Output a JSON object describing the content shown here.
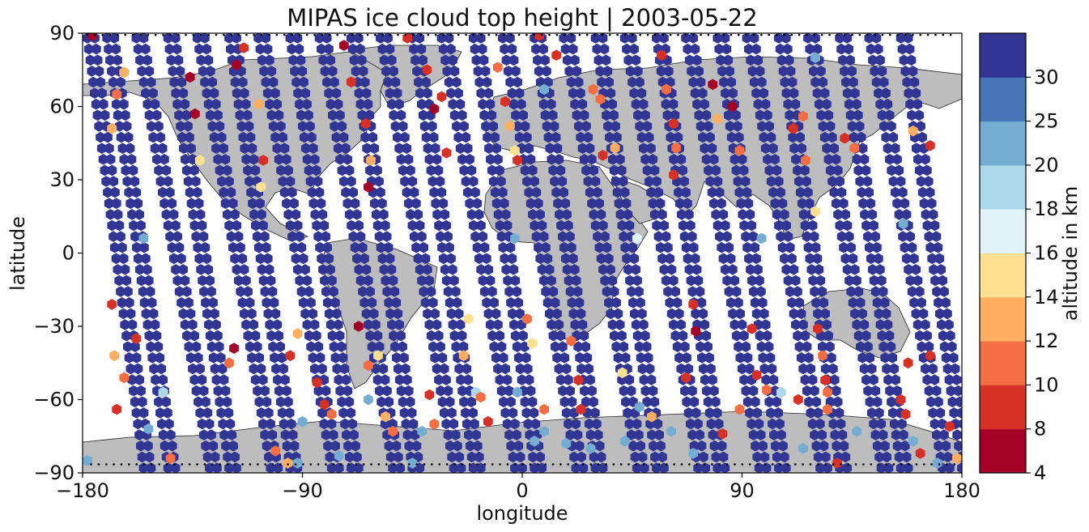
{
  "chart_data": {
    "type": "scatter",
    "title": "MIPAS ice cloud top height | 2003-05-22",
    "xlabel": "longitude",
    "ylabel": "latitude",
    "xlim": [
      -180,
      180
    ],
    "ylim": [
      -90,
      90
    ],
    "xticks": [
      -180,
      -90,
      0,
      90,
      180
    ],
    "yticks": [
      -90,
      -60,
      -30,
      0,
      30,
      60,
      90
    ],
    "xtick_labels": [
      "−180",
      "−90",
      "0",
      "90",
      "180"
    ],
    "ytick_labels": [
      "−90",
      "−60",
      "−30",
      "0",
      "30",
      "60",
      "90"
    ],
    "colorbar": {
      "label": "altitude in km",
      "bounds": [
        4,
        8,
        10,
        12,
        14,
        16,
        18,
        20,
        25,
        30
      ],
      "tick_labels": [
        "4",
        "8",
        "10",
        "12",
        "14",
        "16",
        "18",
        "20",
        "25",
        "30"
      ],
      "colors": [
        "#a50026",
        "#d73027",
        "#f46d43",
        "#fdae61",
        "#fee090",
        "#e0f3f8",
        "#abd9e9",
        "#74add1",
        "#4575b4",
        "#313695"
      ]
    },
    "marker": "hexagon",
    "point_spacing_deg": 4.6,
    "orbit_tracks": [
      {
        "ascending": false,
        "x_start": -178,
        "x_end": -155
      },
      {
        "ascending": true,
        "x_start": -145,
        "x_end": -170
      },
      {
        "ascending": false,
        "x_start": -158,
        "x_end": -128
      },
      {
        "ascending": true,
        "x_start": -120,
        "x_end": -145
      },
      {
        "ascending": false,
        "x_start": -133,
        "x_end": -103
      },
      {
        "ascending": true,
        "x_start": -95,
        "x_end": -120
      },
      {
        "ascending": false,
        "x_start": -108,
        "x_end": -78
      },
      {
        "ascending": true,
        "x_start": -70,
        "x_end": -95
      },
      {
        "ascending": false,
        "x_start": -83,
        "x_end": -53
      },
      {
        "ascending": true,
        "x_start": -45,
        "x_end": -70
      },
      {
        "ascending": false,
        "x_start": -58,
        "x_end": -28
      },
      {
        "ascending": true,
        "x_start": -20,
        "x_end": -45
      },
      {
        "ascending": false,
        "x_start": -33,
        "x_end": -3
      },
      {
        "ascending": true,
        "x_start": 5,
        "x_end": -20
      },
      {
        "ascending": false,
        "x_start": -8,
        "x_end": 22
      },
      {
        "ascending": true,
        "x_start": 30,
        "x_end": 5
      },
      {
        "ascending": false,
        "x_start": 17,
        "x_end": 47
      },
      {
        "ascending": true,
        "x_start": 55,
        "x_end": 30
      },
      {
        "ascending": false,
        "x_start": 42,
        "x_end": 72
      },
      {
        "ascending": true,
        "x_start": 80,
        "x_end": 55
      },
      {
        "ascending": false,
        "x_start": 67,
        "x_end": 97
      },
      {
        "ascending": true,
        "x_start": 105,
        "x_end": 80
      },
      {
        "ascending": false,
        "x_start": 92,
        "x_end": 122
      },
      {
        "ascending": true,
        "x_start": 130,
        "x_end": 105
      },
      {
        "ascending": false,
        "x_start": 117,
        "x_end": 147
      },
      {
        "ascending": true,
        "x_start": 155,
        "x_end": 130
      },
      {
        "ascending": false,
        "x_start": 142,
        "x_end": 172
      },
      {
        "ascending": true,
        "x_start": 180,
        "x_end": 155
      }
    ],
    "low_clouds": [
      {
        "x": -176,
        "y": 89,
        "alt": 6
      },
      {
        "x": -166,
        "y": 65,
        "alt": 11
      },
      {
        "x": -168,
        "y": 51,
        "alt": 12
      },
      {
        "x": -163,
        "y": 74,
        "alt": 13
      },
      {
        "x": -168,
        "y": -21,
        "alt": 9
      },
      {
        "x": -167,
        "y": -42,
        "alt": 12
      },
      {
        "x": -163,
        "y": -51,
        "alt": 11
      },
      {
        "x": -166,
        "y": -64,
        "alt": 8
      },
      {
        "x": -158,
        "y": -35,
        "alt": 8
      },
      {
        "x": -136,
        "y": 72,
        "alt": 6
      },
      {
        "x": -134,
        "y": 57,
        "alt": 7
      },
      {
        "x": -132,
        "y": 38,
        "alt": 15
      },
      {
        "x": -147,
        "y": -57,
        "alt": 19
      },
      {
        "x": -144,
        "y": -84,
        "alt": 11
      },
      {
        "x": -118,
        "y": -39,
        "alt": 7
      },
      {
        "x": -120,
        "y": -45,
        "alt": 11
      },
      {
        "x": -117,
        "y": 77,
        "alt": 7
      },
      {
        "x": -114,
        "y": 84,
        "alt": 8
      },
      {
        "x": -108,
        "y": 61,
        "alt": 12
      },
      {
        "x": -106,
        "y": 38,
        "alt": 8
      },
      {
        "x": -107,
        "y": 27,
        "alt": 15
      },
      {
        "x": -95,
        "y": -42,
        "alt": 8
      },
      {
        "x": -92,
        "y": -33,
        "alt": 12
      },
      {
        "x": -84,
        "y": -53,
        "alt": 9
      },
      {
        "x": -81,
        "y": -62,
        "alt": 9
      },
      {
        "x": -78,
        "y": -66,
        "alt": 11
      },
      {
        "x": -101,
        "y": -81,
        "alt": 11
      },
      {
        "x": -96,
        "y": -86,
        "alt": 12
      },
      {
        "x": -73,
        "y": 85,
        "alt": 6
      },
      {
        "x": -70,
        "y": 70,
        "alt": 9
      },
      {
        "x": -64,
        "y": 53,
        "alt": 8
      },
      {
        "x": -62,
        "y": 38,
        "alt": 12
      },
      {
        "x": -63,
        "y": 27,
        "alt": 7
      },
      {
        "x": -67,
        "y": -30,
        "alt": 7
      },
      {
        "x": -59,
        "y": -42,
        "alt": 15
      },
      {
        "x": -63,
        "y": -46,
        "alt": 11
      },
      {
        "x": -56,
        "y": -67,
        "alt": 12
      },
      {
        "x": -53,
        "y": -73,
        "alt": 10
      },
      {
        "x": -47,
        "y": 88,
        "alt": 8
      },
      {
        "x": -39,
        "y": 75,
        "alt": 8
      },
      {
        "x": -36,
        "y": 59,
        "alt": 7
      },
      {
        "x": -33,
        "y": 64,
        "alt": 9
      },
      {
        "x": -31,
        "y": 41,
        "alt": 9
      },
      {
        "x": -38,
        "y": -58,
        "alt": 9
      },
      {
        "x": -36,
        "y": -70,
        "alt": 11
      },
      {
        "x": -22,
        "y": -27,
        "alt": 15
      },
      {
        "x": -24,
        "y": -42,
        "alt": 12
      },
      {
        "x": -17,
        "y": -59,
        "alt": 11
      },
      {
        "x": -14,
        "y": -69,
        "alt": 8
      },
      {
        "x": -10,
        "y": 76,
        "alt": 11
      },
      {
        "x": -7,
        "y": 62,
        "alt": 8
      },
      {
        "x": -5,
        "y": 52,
        "alt": 12
      },
      {
        "x": -3,
        "y": 42,
        "alt": 15
      },
      {
        "x": -2,
        "y": 38,
        "alt": 8
      },
      {
        "x": 2,
        "y": -27,
        "alt": 11
      },
      {
        "x": 4,
        "y": -37,
        "alt": 15
      },
      {
        "x": 7,
        "y": 89,
        "alt": 8
      },
      {
        "x": 14,
        "y": 81,
        "alt": 8
      },
      {
        "x": 9,
        "y": -64,
        "alt": 11
      },
      {
        "x": 20,
        "y": -36,
        "alt": 11
      },
      {
        "x": 23,
        "y": -52,
        "alt": 9
      },
      {
        "x": 24,
        "y": -64,
        "alt": 8
      },
      {
        "x": 29,
        "y": 67,
        "alt": 11
      },
      {
        "x": 32,
        "y": 63,
        "alt": 11
      },
      {
        "x": 33,
        "y": 40,
        "alt": 8
      },
      {
        "x": 38,
        "y": 43,
        "alt": 12
      },
      {
        "x": 41,
        "y": -49,
        "alt": 15
      },
      {
        "x": 53,
        "y": -67,
        "alt": 12
      },
      {
        "x": 57,
        "y": 81,
        "alt": 8
      },
      {
        "x": 59,
        "y": 67,
        "alt": 11
      },
      {
        "x": 62,
        "y": 53,
        "alt": 9
      },
      {
        "x": 63,
        "y": 43,
        "alt": 11
      },
      {
        "x": 62,
        "y": 32,
        "alt": 9
      },
      {
        "x": 70,
        "y": -21,
        "alt": 8
      },
      {
        "x": 71,
        "y": -32,
        "alt": 7
      },
      {
        "x": 67,
        "y": -51,
        "alt": 8
      },
      {
        "x": 78,
        "y": 69,
        "alt": 7
      },
      {
        "x": 80,
        "y": 55,
        "alt": 12
      },
      {
        "x": 86,
        "y": 60,
        "alt": 7
      },
      {
        "x": 89,
        "y": 42,
        "alt": 11
      },
      {
        "x": 82,
        "y": -74,
        "alt": 9
      },
      {
        "x": 89,
        "y": -64,
        "alt": 11
      },
      {
        "x": 94,
        "y": -31,
        "alt": 8
      },
      {
        "x": 96,
        "y": -50,
        "alt": 8
      },
      {
        "x": 100,
        "y": -56,
        "alt": 11
      },
      {
        "x": 111,
        "y": 51,
        "alt": 8
      },
      {
        "x": 115,
        "y": 56,
        "alt": 11
      },
      {
        "x": 116,
        "y": 38,
        "alt": 11
      },
      {
        "x": 120,
        "y": 17,
        "alt": 15
      },
      {
        "x": 113,
        "y": -60,
        "alt": 8
      },
      {
        "x": 121,
        "y": -31,
        "alt": 9
      },
      {
        "x": 123,
        "y": -42,
        "alt": 11
      },
      {
        "x": 124,
        "y": -52,
        "alt": 9
      },
      {
        "x": 125,
        "y": -57,
        "alt": 11
      },
      {
        "x": 125,
        "y": -64,
        "alt": 11
      },
      {
        "x": 132,
        "y": 47,
        "alt": 8
      },
      {
        "x": 136,
        "y": 43,
        "alt": 11
      },
      {
        "x": 129,
        "y": -86,
        "alt": 8
      },
      {
        "x": 155,
        "y": -60,
        "alt": 8
      },
      {
        "x": 157,
        "y": -66,
        "alt": 8
      },
      {
        "x": 158,
        "y": -45,
        "alt": 8
      },
      {
        "x": 160,
        "y": 50,
        "alt": 12
      },
      {
        "x": 167,
        "y": 44,
        "alt": 9
      },
      {
        "x": 167,
        "y": -42,
        "alt": 9
      },
      {
        "x": 163,
        "y": -82,
        "alt": 9
      },
      {
        "x": 175,
        "y": -71,
        "alt": 9
      },
      {
        "x": 178,
        "y": -84,
        "alt": 12
      }
    ],
    "mid_clouds": [
      {
        "x": -155,
        "y": 6,
        "alt": 22
      },
      {
        "x": -147,
        "y": -57,
        "alt": 19
      },
      {
        "x": -153,
        "y": -72,
        "alt": 22
      },
      {
        "x": -178,
        "y": -85,
        "alt": 22
      },
      {
        "x": -90,
        "y": -69,
        "alt": 22
      },
      {
        "x": -92,
        "y": -86,
        "alt": 22
      },
      {
        "x": -75,
        "y": -83,
        "alt": 22
      },
      {
        "x": -63,
        "y": -60,
        "alt": 22
      },
      {
        "x": -45,
        "y": -86,
        "alt": 22
      },
      {
        "x": -41,
        "y": -73,
        "alt": 22
      },
      {
        "x": -3,
        "y": 6,
        "alt": 22
      },
      {
        "x": -19,
        "y": -57,
        "alt": 19
      },
      {
        "x": -2,
        "y": -57,
        "alt": 22
      },
      {
        "x": 5,
        "y": -77,
        "alt": 22
      },
      {
        "x": 9,
        "y": -73,
        "alt": 22
      },
      {
        "x": 18,
        "y": -78,
        "alt": 22
      },
      {
        "x": 28,
        "y": -80,
        "alt": 22
      },
      {
        "x": 42,
        "y": -77,
        "alt": 22
      },
      {
        "x": 48,
        "y": -63,
        "alt": 22
      },
      {
        "x": 61,
        "y": -73,
        "alt": 22
      },
      {
        "x": 70,
        "y": -82,
        "alt": 22
      },
      {
        "x": 98,
        "y": 6,
        "alt": 22
      },
      {
        "x": 106,
        "y": -57,
        "alt": 19
      },
      {
        "x": 115,
        "y": -80,
        "alt": 22
      },
      {
        "x": 137,
        "y": -73,
        "alt": 22
      },
      {
        "x": 156,
        "y": 12,
        "alt": 22
      },
      {
        "x": 160,
        "y": -77,
        "alt": 22
      },
      {
        "x": 170,
        "y": -86,
        "alt": 22
      },
      {
        "x": 47,
        "y": 6,
        "alt": 17
      },
      {
        "x": 9,
        "y": 67,
        "alt": 22
      },
      {
        "x": 120,
        "y": 80,
        "alt": 22
      }
    ]
  }
}
